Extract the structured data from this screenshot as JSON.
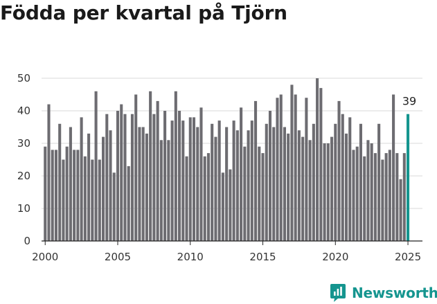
{
  "title": "Födda per kvartal på Tjörn",
  "brand": {
    "name": "Newsworthy",
    "icon": "newsworthy-logo-icon",
    "color": "#15958f"
  },
  "chart_data": {
    "type": "bar",
    "title": "Födda per kvartal på Tjörn",
    "xlabel": "",
    "ylabel": "",
    "ylim": [
      0,
      50
    ],
    "yticks": [
      0,
      10,
      20,
      30,
      40,
      50
    ],
    "xticks": [
      "2000",
      "2005",
      "2010",
      "2015",
      "2020",
      "2025"
    ],
    "xlim": [
      1999.75,
      2026.0
    ],
    "grid": true,
    "bar_color": "#6d6c71",
    "highlight_color": "#15958f",
    "highlight_label": "39",
    "start_year": 2000,
    "start_quarter": 1,
    "values": [
      29,
      42,
      28,
      28,
      36,
      25,
      29,
      35,
      28,
      28,
      38,
      26,
      33,
      25,
      46,
      25,
      32,
      39,
      34,
      21,
      40,
      42,
      39,
      23,
      39,
      45,
      35,
      35,
      33,
      46,
      39,
      43,
      31,
      40,
      31,
      37,
      46,
      40,
      37,
      26,
      38,
      38,
      35,
      41,
      26,
      27,
      36,
      32,
      37,
      21,
      35,
      22,
      37,
      34,
      41,
      29,
      34,
      37,
      43,
      29,
      27,
      36,
      40,
      35,
      44,
      45,
      35,
      33,
      48,
      45,
      34,
      32,
      44,
      31,
      36,
      50,
      47,
      30,
      30,
      32,
      36,
      43,
      39,
      33,
      38,
      28,
      29,
      36,
      26,
      31,
      30,
      27,
      36,
      25,
      27,
      28,
      45,
      27,
      19,
      27,
      39
    ]
  }
}
